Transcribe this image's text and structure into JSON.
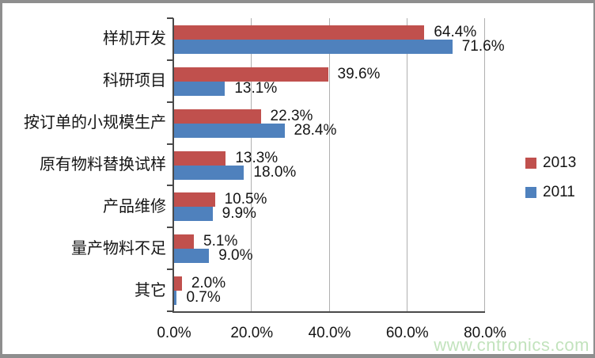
{
  "chart_data": {
    "type": "bar",
    "orientation": "horizontal",
    "title": "",
    "categories": [
      "样机开发",
      "科研项目",
      "按订单的小规模生产",
      "原有物料替换试样",
      "产品维修",
      "量产物料不足",
      "其它"
    ],
    "series": [
      {
        "name": "2013",
        "color": "#C0504D",
        "values": [
          64.4,
          39.6,
          22.3,
          13.3,
          10.5,
          5.1,
          2.0
        ],
        "labels": [
          "64.4%",
          "39.6%",
          "22.3%",
          "13.3%",
          "10.5%",
          "5.1%",
          "2.0%"
        ]
      },
      {
        "name": "2011",
        "color": "#4F81BD",
        "values": [
          71.6,
          13.1,
          28.4,
          18.0,
          9.9,
          9.0,
          0.7
        ],
        "labels": [
          "71.6%",
          "13.1%",
          "28.4%",
          "18.0%",
          "9.9%",
          "9.0%",
          "0.7%"
        ]
      }
    ],
    "x_axis": {
      "min": 0,
      "max": 80,
      "tick_interval": 20,
      "tick_labels": [
        "0.0%",
        "20.0%",
        "40.0%",
        "60.0%",
        "80.0%"
      ]
    },
    "legend": {
      "position": "right",
      "entries": [
        "2013",
        "2011"
      ]
    },
    "grid": true
  },
  "watermark": {
    "text": "www.cntronics.com",
    "color": "#BCE0B6"
  },
  "colors": {
    "series_2013": "#C0504D",
    "series_2011": "#4F81BD",
    "gridline": "#AFAFAF",
    "axis": "#4A4A4A",
    "text": "#151515",
    "background": "#FFFFFF",
    "frame": "#8E8E8E"
  }
}
